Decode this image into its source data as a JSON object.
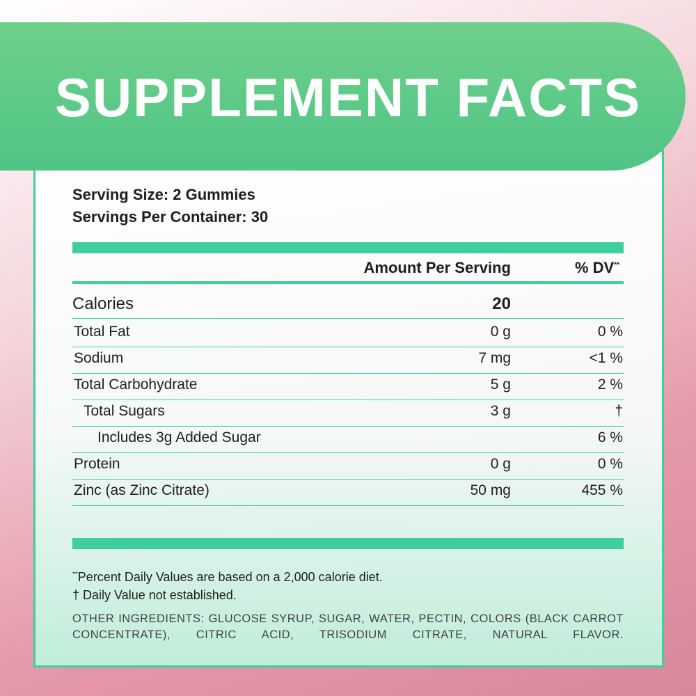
{
  "header": {
    "title": "SUPPLEMENT FACTS"
  },
  "serving": {
    "size": "Serving Size: 2 Gummies",
    "per_container": "Servings Per Container: 30"
  },
  "table": {
    "columns": {
      "amount": "Amount Per Serving",
      "dv": "% DV",
      "dv_mark": "**"
    },
    "calories": {
      "label": "Calories",
      "amount": "20"
    },
    "rows": [
      {
        "label": "Total Fat",
        "amount": "0 g",
        "dv": "0 %"
      },
      {
        "label": "Sodium",
        "amount": "7 mg",
        "dv": "<1 %"
      },
      {
        "label": "Total Carbohydrate",
        "amount": "5 g",
        "dv": "2 %"
      },
      {
        "label": "Total Sugars",
        "amount": "3 g",
        "dv": "†",
        "level": 1
      },
      {
        "label": "Includes 3g Added Sugar",
        "dv": "6 %",
        "level": 2
      },
      {
        "label": "Protein",
        "amount": "0 g",
        "dv": "0 %"
      },
      {
        "label": "Zinc (as Zinc Citrate)",
        "amount": "50 mg",
        "dv": "455 %"
      }
    ]
  },
  "footnotes": {
    "dv_mark": "**",
    "dv_note": "Percent Daily Values are based on a 2,000 calorie diet.",
    "dagger_note": "† Daily Value not established."
  },
  "other_ingredients": {
    "label": "OTHER INGREDIENTS:",
    "text": "GLUCOSE SYRUP, SUGAR, WATER, PECTIN, COLORS (BLACK CARROT CONCENTRATE), CITRIC ACID, TRISODIUM CITRATE, NATURAL FLAVOR."
  }
}
